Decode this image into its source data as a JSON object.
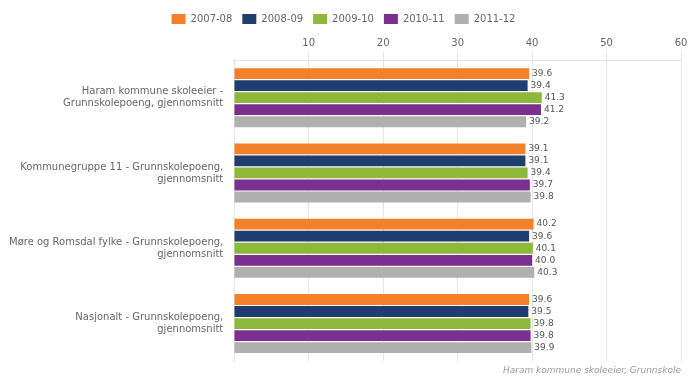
{
  "chart_data": {
    "type": "bar",
    "orientation": "horizontal",
    "categories": [
      "Haram kommune skoleeier -\nGrunnskolepoeng, gjennomsnitt",
      "Kommunegruppe 11 - Grunnskolepoeng,\ngjennomsnitt",
      "Møre og Romsdal fylke - Grunnskolepoeng,\ngjennomsnitt",
      "Nasjonalt - Grunnskolepoeng,\ngjennomsnitt"
    ],
    "series": [
      {
        "name": "2007-08",
        "color": "#f4802a",
        "values": [
          39.6,
          39.1,
          40.2,
          39.6
        ]
      },
      {
        "name": "2008-09",
        "color": "#1f3d6e",
        "values": [
          39.4,
          39.1,
          39.6,
          39.5
        ]
      },
      {
        "name": "2009-10",
        "color": "#8db83a",
        "values": [
          41.3,
          39.4,
          40.1,
          39.8
        ]
      },
      {
        "name": "2010-11",
        "color": "#7b2f8e",
        "values": [
          41.2,
          39.7,
          40.0,
          39.8
        ],
        "value_labels": [
          "41.2",
          "39.7",
          "40.0",
          "39.8"
        ]
      },
      {
        "name": "2011-12",
        "color": "#b0b0b0",
        "values": [
          39.2,
          39.8,
          40.3,
          39.9
        ]
      }
    ],
    "xlim": [
      0,
      60
    ],
    "xticks": [
      10,
      20,
      30,
      40,
      50,
      60
    ],
    "grid": true,
    "legend": "top",
    "data_labels": true,
    "annotations": [
      "Haram kommune skoleeier, Grunnskole"
    ]
  }
}
